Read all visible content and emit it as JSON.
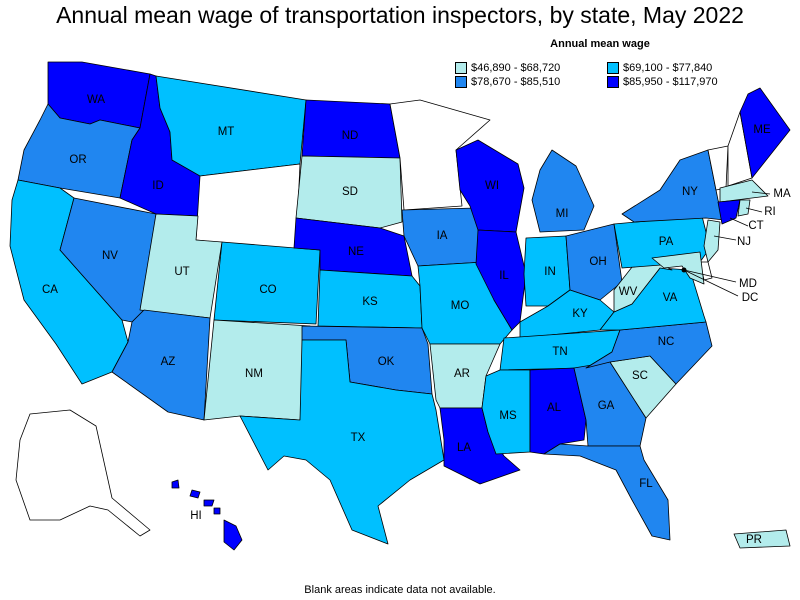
{
  "title": "Annual mean wage of transportation inspectors, by state, May 2022",
  "legend": {
    "title": "Annual mean wage",
    "items": [
      {
        "label": "$46,890 - $68,720",
        "color": "#b3ecec"
      },
      {
        "label": "$69,100 - $77,840",
        "color": "#00c0ff"
      },
      {
        "label": "$78,670 - $85,510",
        "color": "#2086f0"
      },
      {
        "label": "$85,950 - $117,970",
        "color": "#0000ff"
      }
    ]
  },
  "footnote": "Blank areas indicate data not available.",
  "states": {
    "WA": {
      "label": "WA",
      "tier": 4
    },
    "OR": {
      "label": "OR",
      "tier": 3
    },
    "CA": {
      "label": "CA",
      "tier": 2
    },
    "NV": {
      "label": "NV",
      "tier": 3
    },
    "ID": {
      "label": "ID",
      "tier": 4
    },
    "MT": {
      "label": "MT",
      "tier": 2
    },
    "WY": {
      "label": "",
      "tier": 0
    },
    "UT": {
      "label": "UT",
      "tier": 1
    },
    "AZ": {
      "label": "AZ",
      "tier": 3
    },
    "CO": {
      "label": "CO",
      "tier": 2
    },
    "NM": {
      "label": "NM",
      "tier": 1
    },
    "ND": {
      "label": "ND",
      "tier": 4
    },
    "SD": {
      "label": "SD",
      "tier": 1
    },
    "NE": {
      "label": "NE",
      "tier": 4
    },
    "KS": {
      "label": "KS",
      "tier": 2
    },
    "OK": {
      "label": "OK",
      "tier": 3
    },
    "TX": {
      "label": "TX",
      "tier": 2
    },
    "MN": {
      "label": "",
      "tier": 0
    },
    "IA": {
      "label": "IA",
      "tier": 3
    },
    "MO": {
      "label": "MO",
      "tier": 2
    },
    "AR": {
      "label": "AR",
      "tier": 1
    },
    "LA": {
      "label": "LA",
      "tier": 4
    },
    "WI": {
      "label": "WI",
      "tier": 4
    },
    "IL": {
      "label": "IL",
      "tier": 4
    },
    "MI": {
      "label": "MI",
      "tier": 3
    },
    "IN": {
      "label": "IN",
      "tier": 2
    },
    "OH": {
      "label": "OH",
      "tier": 3
    },
    "KY": {
      "label": "KY",
      "tier": 2
    },
    "TN": {
      "label": "TN",
      "tier": 2
    },
    "MS": {
      "label": "MS",
      "tier": 2
    },
    "AL": {
      "label": "AL",
      "tier": 4
    },
    "GA": {
      "label": "GA",
      "tier": 3
    },
    "FL": {
      "label": "FL",
      "tier": 3
    },
    "SC": {
      "label": "SC",
      "tier": 1
    },
    "NC": {
      "label": "NC",
      "tier": 3
    },
    "VA": {
      "label": "VA",
      "tier": 2
    },
    "WV": {
      "label": "WV",
      "tier": 1
    },
    "PA": {
      "label": "PA",
      "tier": 2
    },
    "NY": {
      "label": "NY",
      "tier": 3
    },
    "VT": {
      "label": "",
      "tier": 0
    },
    "NH": {
      "label": "",
      "tier": 0
    },
    "ME": {
      "label": "ME",
      "tier": 4
    },
    "MA": {
      "label": "MA",
      "tier": 1
    },
    "RI": {
      "label": "RI",
      "tier": 1
    },
    "CT": {
      "label": "CT",
      "tier": 4
    },
    "NJ": {
      "label": "NJ",
      "tier": 1
    },
    "DE": {
      "label": "",
      "tier": 0
    },
    "MD": {
      "label": "MD",
      "tier": 1
    },
    "DC": {
      "label": "DC",
      "tier": 4
    },
    "AK": {
      "label": "",
      "tier": 0
    },
    "HI": {
      "label": "HI",
      "tier": 4
    },
    "PR": {
      "label": "PR",
      "tier": 1
    }
  }
}
